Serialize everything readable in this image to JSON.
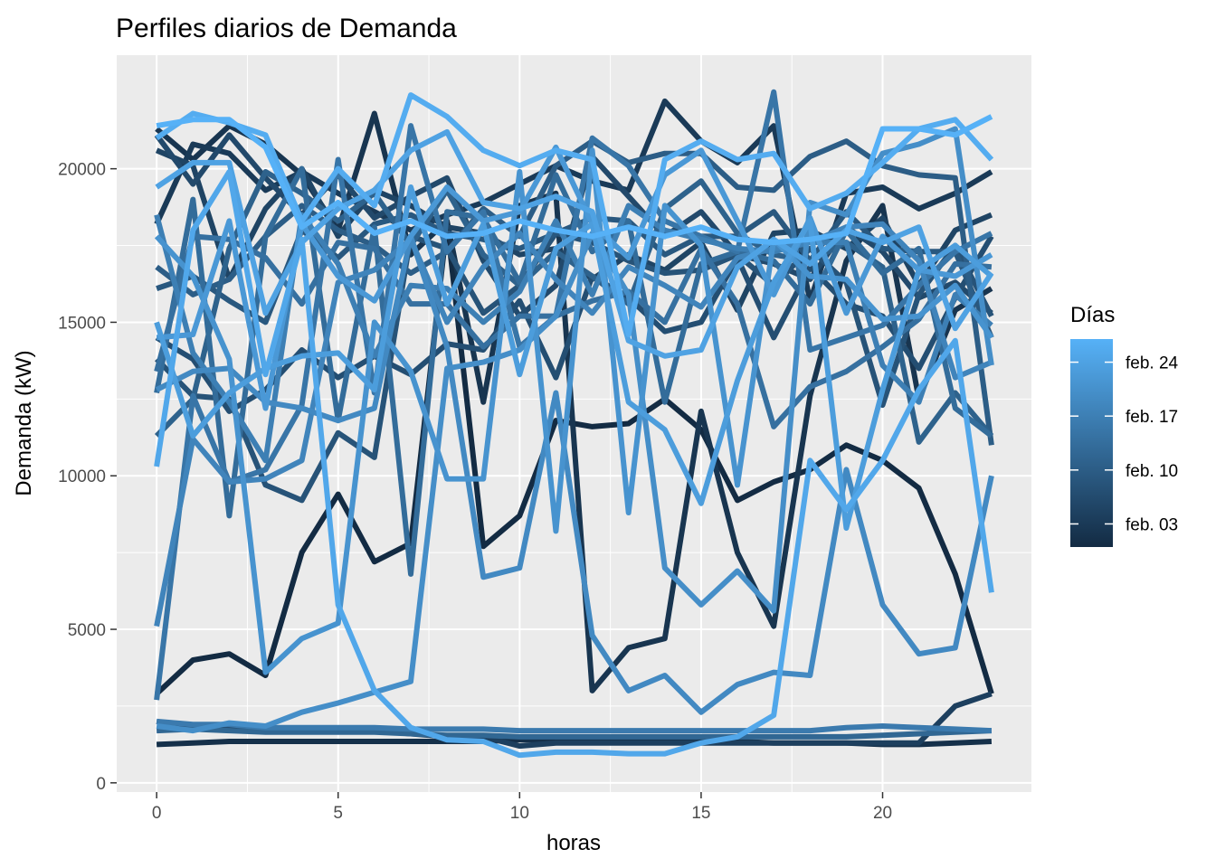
{
  "chart_data": {
    "type": "line",
    "title": "Perfiles diarios de Demanda",
    "xlabel": "horas",
    "ylabel": "Demanda (kW)",
    "xlim": [
      -1.1,
      24.1
    ],
    "ylim": [
      -300,
      23700
    ],
    "x_ticks": [
      0,
      5,
      10,
      15,
      20
    ],
    "x_tick_labels": [
      "0",
      "5",
      "10",
      "15",
      "20"
    ],
    "y_ticks": [
      0,
      5000,
      10000,
      15000,
      20000
    ],
    "y_tick_labels": [
      "0",
      "5000",
      "10000",
      "15000",
      "20000"
    ],
    "grid": true,
    "panel_background": "#ebebeb",
    "legend": {
      "title": "Días",
      "position": "right",
      "type": "continuous-colorbar",
      "labels": [
        "feb. 24",
        "feb. 17",
        "feb. 10",
        "feb. 03"
      ],
      "label_day_index": [
        24,
        17,
        10,
        3
      ],
      "day_range": [
        0,
        27
      ],
      "color_low": "#132b43",
      "color_high": "#56b1f7"
    },
    "x": [
      0,
      1,
      2,
      3,
      4,
      5,
      6,
      7,
      8,
      9,
      10,
      11,
      12,
      13,
      14,
      15,
      16,
      17,
      18,
      19,
      20,
      21,
      22,
      23
    ],
    "series": [
      {
        "day_index": 0,
        "values": [
          2900,
          4000,
          4200,
          3500,
          7500,
          9400,
          7200,
          7800,
          18200,
          7700,
          8700,
          11800,
          11600,
          11700,
          12500,
          11500,
          9200,
          9800,
          10200,
          11000,
          10500,
          9600,
          6800,
          2900
        ]
      },
      {
        "day_index": 1,
        "values": [
          1250,
          1300,
          1350,
          1350,
          1350,
          1350,
          1350,
          1350,
          1350,
          1350,
          1400,
          1400,
          1400,
          1400,
          1400,
          1400,
          1350,
          1300,
          1300,
          1300,
          1250,
          1250,
          1300,
          1350
        ]
      },
      {
        "day_index": 2,
        "values": [
          21300,
          20300,
          21400,
          20800,
          19800,
          18000,
          21800,
          17200,
          18300,
          12400,
          18800,
          19200,
          3000,
          4400,
          4700,
          12100,
          7500,
          5100,
          12600,
          17000,
          18800,
          12500,
          15400,
          16100
        ]
      },
      {
        "day_index": 3,
        "values": [
          18200,
          20800,
          20500,
          19300,
          19900,
          19200,
          18600,
          18000,
          18500,
          18900,
          19500,
          20100,
          19600,
          19300,
          22200,
          20900,
          20200,
          21400,
          15700,
          19200,
          19400,
          18700,
          19200,
          19900
        ]
      },
      {
        "day_index": 4,
        "values": [
          2000,
          1800,
          1800,
          1700,
          1700,
          1700,
          1700,
          1600,
          1500,
          1500,
          1200,
          1300,
          1300,
          1300,
          1300,
          1300,
          1300,
          1300,
          1300,
          1300,
          1300,
          1300,
          2500,
          2900
        ]
      },
      {
        "day_index": 5,
        "values": [
          20600,
          20100,
          16400,
          18700,
          20000,
          17800,
          19300,
          18800,
          18100,
          17900,
          17200,
          17400,
          16400,
          17200,
          16700,
          17600,
          15400,
          17900,
          18000,
          17400,
          18400,
          16200,
          18000,
          18500
        ]
      },
      {
        "day_index": 6,
        "values": [
          21100,
          19500,
          21100,
          19700,
          18500,
          19800,
          18400,
          19100,
          19700,
          17000,
          15200,
          16200,
          20400,
          19100,
          17800,
          18600,
          17200,
          16900,
          16400,
          18100,
          17300,
          15800,
          16300,
          15300
        ]
      },
      {
        "day_index": 7,
        "values": [
          14500,
          13800,
          12100,
          12800,
          14100,
          13200,
          13900,
          13300,
          14300,
          14100,
          15700,
          13200,
          16500,
          15800,
          14700,
          15000,
          17100,
          14500,
          16800,
          15600,
          15200,
          13500,
          15800,
          17800
        ]
      },
      {
        "day_index": 8,
        "values": [
          13800,
          12600,
          12500,
          9700,
          9200,
          11400,
          10600,
          17800,
          17400,
          15300,
          16200,
          17900,
          17600,
          17000,
          16600,
          16700,
          17200,
          16200,
          17400,
          16300,
          12300,
          15900,
          17500,
          15200
        ]
      },
      {
        "day_index": 9,
        "values": [
          16100,
          16500,
          15700,
          15000,
          18000,
          17100,
          18200,
          18500,
          17900,
          17700,
          17400,
          17900,
          18400,
          18300,
          17200,
          17800,
          17800,
          18600,
          17000,
          18600,
          17400,
          17300,
          17300,
          14500
        ]
      },
      {
        "day_index": 10,
        "values": [
          16800,
          15900,
          16400,
          17800,
          18800,
          18000,
          17500,
          16600,
          17300,
          18700,
          17800,
          20100,
          20900,
          20200,
          20500,
          20500,
          19400,
          19300,
          20400,
          20900,
          20100,
          19800,
          19700,
          11000
        ]
      },
      {
        "day_index": 11,
        "values": [
          11300,
          12500,
          17400,
          19900,
          19200,
          18300,
          19200,
          17500,
          19300,
          17200,
          16200,
          17300,
          16500,
          15600,
          18700,
          19600,
          17900,
          17200,
          17000,
          17600,
          16800,
          11100,
          12700,
          11300
        ]
      },
      {
        "day_index": 12,
        "values": [
          1700,
          1750,
          1700,
          1650,
          1650,
          1650,
          1650,
          1600,
          1550,
          1550,
          1500,
          1500,
          1500,
          1500,
          1500,
          1500,
          1500,
          1500,
          1500,
          1500,
          1550,
          1600,
          1650,
          1700
        ]
      },
      {
        "day_index": 13,
        "values": [
          12700,
          19000,
          8700,
          17800,
          20000,
          11800,
          18100,
          6800,
          18600,
          18400,
          16300,
          19800,
          17300,
          18300,
          12400,
          16900,
          17300,
          17000,
          15600,
          18000,
          16600,
          17400,
          12200,
          11300
        ]
      },
      {
        "day_index": 14,
        "values": [
          13400,
          17800,
          17700,
          17100,
          15600,
          17600,
          17400,
          15600,
          15600,
          14200,
          15200,
          15200,
          15700,
          16000,
          15000,
          17400,
          15600,
          11600,
          12900,
          13400,
          14200,
          15100,
          16900,
          16800
        ]
      },
      {
        "day_index": 15,
        "values": [
          2700,
          12600,
          9800,
          10200,
          12300,
          20300,
          12700,
          21400,
          17300,
          18600,
          14200,
          15200,
          21000,
          20100,
          18300,
          17800,
          17300,
          22500,
          14100,
          14500,
          14900,
          16200,
          17300,
          17900
        ]
      },
      {
        "day_index": 16,
        "values": [
          2000,
          1900,
          1900,
          1800,
          1800,
          1800,
          1800,
          1750,
          1750,
          1750,
          1700,
          1700,
          1700,
          1700,
          1700,
          1700,
          1700,
          1700,
          1700,
          1800,
          1850,
          1800,
          1750,
          1700
        ]
      },
      {
        "day_index": 17,
        "values": [
          18500,
          14000,
          12400,
          10500,
          18500,
          16900,
          13900,
          16200,
          16100,
          15000,
          16000,
          18300,
          15900,
          18800,
          18000,
          17700,
          17400,
          17300,
          17600,
          17600,
          13600,
          12400,
          15900,
          14900
        ]
      },
      {
        "day_index": 18,
        "values": [
          5100,
          11200,
          9800,
          9900,
          10500,
          16300,
          16700,
          17700,
          15000,
          16800,
          17900,
          16400,
          15300,
          16800,
          16200,
          15500,
          17100,
          17400,
          17600,
          18100,
          18200,
          17000,
          13200,
          13700
        ]
      },
      {
        "day_index": 19,
        "values": [
          12800,
          13400,
          13500,
          12400,
          12200,
          11800,
          12200,
          17800,
          14200,
          6700,
          7000,
          12700,
          4800,
          3000,
          3500,
          2300,
          3200,
          3600,
          3500,
          10200,
          5800,
          4200,
          4400,
          10000
        ]
      },
      {
        "day_index": 20,
        "values": [
          1850,
          1700,
          1950,
          1850,
          2300,
          2600,
          2950,
          3300,
          13500,
          13700,
          14100,
          15200,
          17900,
          15900,
          7000,
          5800,
          6900,
          5600,
          18900,
          18500,
          20500,
          20800,
          21300,
          13600
        ]
      },
      {
        "day_index": 21,
        "values": [
          17800,
          16500,
          13800,
          3600,
          4700,
          5200,
          15000,
          13400,
          9900,
          9900,
          19900,
          8200,
          20600,
          8800,
          18800,
          17500,
          9700,
          17700,
          16500,
          16400,
          15100,
          15200,
          16200,
          14500
        ]
      },
      {
        "day_index": 22,
        "values": [
          14500,
          14600,
          18300,
          12200,
          18200,
          16500,
          15700,
          17800,
          19400,
          18300,
          18600,
          20700,
          18200,
          17100,
          19800,
          20600,
          18300,
          15900,
          18400,
          15300,
          17800,
          16700,
          16500,
          17200
        ]
      },
      {
        "day_index": 23,
        "values": [
          15000,
          11300,
          12700,
          13500,
          13900,
          14000,
          12800,
          19400,
          15600,
          18200,
          13300,
          17400,
          18200,
          12400,
          11500,
          9100,
          13100,
          16300,
          18300,
          8300,
          12800,
          16700,
          17500,
          16500
        ]
      },
      {
        "day_index": 24,
        "values": [
          19400,
          20200,
          20200,
          15300,
          17600,
          18700,
          19300,
          20600,
          21200,
          18900,
          18700,
          19100,
          18600,
          14400,
          13900,
          14100,
          16800,
          17700,
          16900,
          18000,
          17600,
          18100,
          14800,
          16600
        ]
      },
      {
        "day_index": 25,
        "values": [
          10300,
          18000,
          19900,
          13300,
          17700,
          5800,
          3000,
          1800,
          1400,
          1350,
          900,
          1000,
          1000,
          950,
          950,
          1300,
          1500,
          2200,
          10500,
          8900,
          10500,
          12800,
          14400,
          6200
        ]
      },
      {
        "day_index": 26,
        "values": [
          21000,
          21800,
          21500,
          21100,
          18300,
          20000,
          18800,
          22400,
          21700,
          20600,
          20100,
          20600,
          20300,
          14600,
          20300,
          20900,
          20300,
          20500,
          18700,
          19200,
          20200,
          21300,
          21600,
          20300
        ]
      },
      {
        "day_index": 27,
        "values": [
          21400,
          21600,
          21600,
          20700,
          18100,
          18900,
          17900,
          18300,
          17800,
          17900,
          18300,
          18000,
          17800,
          18100,
          17800,
          18100,
          17700,
          17600,
          17700,
          17900,
          21300,
          21300,
          21100,
          21700
        ]
      }
    ]
  }
}
